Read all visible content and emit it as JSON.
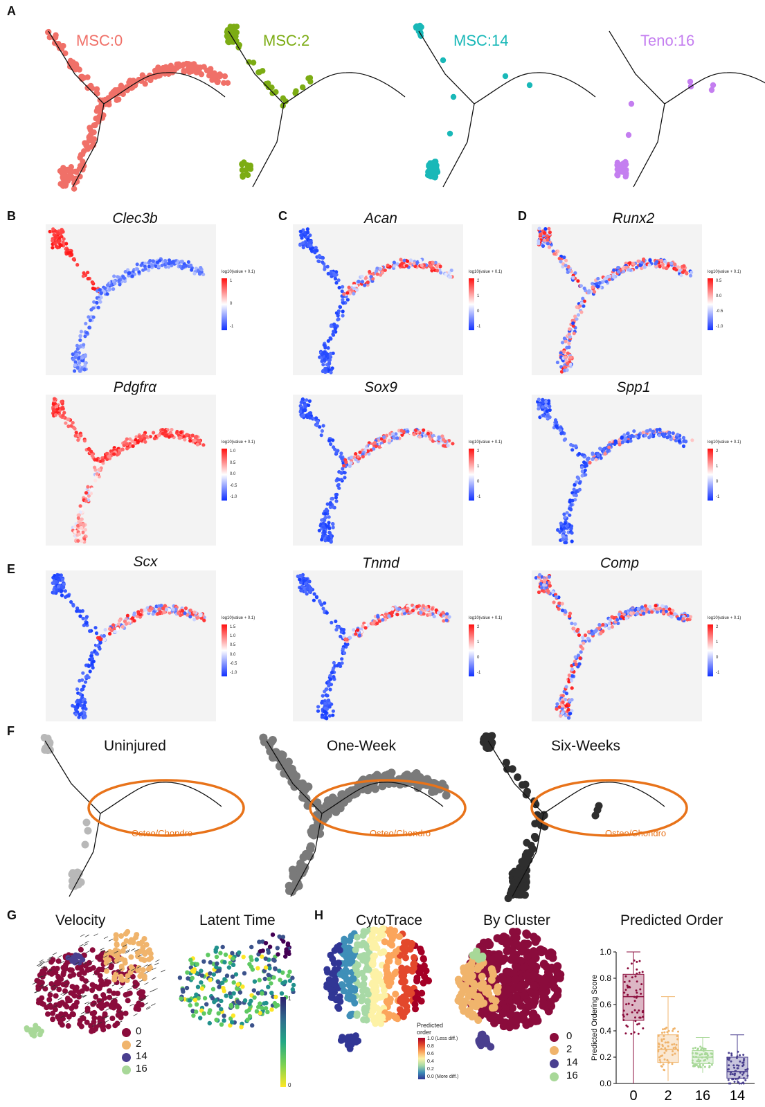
{
  "panels": {
    "a": "A",
    "b": "B",
    "c": "C",
    "d": "D",
    "e": "E",
    "f": "F",
    "g": "G",
    "h": "H"
  },
  "clusters": [
    {
      "name": "MSC:0",
      "color": "#f07068"
    },
    {
      "name": "MSC:2",
      "color": "#7cac14"
    },
    {
      "name": "MSC:14",
      "color": "#19b8b8"
    },
    {
      "name": "Teno:16",
      "color": "#c47ef0"
    }
  ],
  "genes": {
    "clec3b": "Clec3b",
    "acan": "Acan",
    "runx2": "Runx2",
    "pdgfra": "Pdgfrα",
    "sox9": "Sox9",
    "spp1": "Spp1",
    "scx": "Scx",
    "tnmd": "Tnmd",
    "comp": "Comp"
  },
  "colorbar": {
    "label": "log10(value + 0.1)",
    "clec3b": [
      "1",
      "0",
      "-1"
    ],
    "acan": [
      "2",
      "1",
      "0",
      "-1"
    ],
    "runx2": [
      "0.5",
      "0.0",
      "-0.5",
      "-1.0"
    ],
    "pdgfra": [
      "1.0",
      "0.5",
      "0.0",
      "-0.5",
      "-1.0"
    ],
    "sox9": [
      "2",
      "1",
      "0",
      "-1"
    ],
    "spp1": [
      "2",
      "1",
      "0",
      "-1"
    ],
    "scx": [
      "1.5",
      "1.0",
      "0.5",
      "0.0",
      "-0.5",
      "-1.0"
    ],
    "tnmd": [
      "2",
      "1",
      "0",
      "-1"
    ],
    "comp": [
      "2",
      "1",
      "0",
      "-1"
    ]
  },
  "timepoints": [
    {
      "name": "Uninjured",
      "color": "#b8b8b8"
    },
    {
      "name": "One-Week",
      "color": "#7a7a7a"
    },
    {
      "name": "Six-Weeks",
      "color": "#2e2e2e"
    }
  ],
  "osteo_label": "Osteo/Chondro",
  "osteo_color": "#e8731a",
  "g_titles": {
    "velocity": "Velocity",
    "latent": "Latent Time"
  },
  "h_titles": {
    "cytotrace": "CytoTrace",
    "bycluster": "By Cluster",
    "predicted": "Predicted Order"
  },
  "latent_ticks": {
    "top": "1",
    "bottom": "0"
  },
  "cyto_legend": {
    "title_line1": "Predicted",
    "title_line2": "order",
    "ticks": [
      "1.0 (Less diff.)",
      "0.8",
      "0.6",
      "0.4",
      "0.2",
      "0.0 (More diff.)"
    ]
  },
  "cluster_legend": [
    {
      "label": "0",
      "color": "#8b0c3c"
    },
    {
      "label": "2",
      "color": "#f0b46c"
    },
    {
      "label": "14",
      "color": "#4a3f8f"
    },
    {
      "label": "16",
      "color": "#a8d898"
    }
  ],
  "chart_data": {
    "type": "box",
    "title": "Predicted Order",
    "ylabel": "Predicted Ordering Score",
    "categories": [
      "0",
      "2",
      "16",
      "14"
    ],
    "ylim": [
      0,
      1.0
    ],
    "yticks": [
      "0.0",
      "0.2",
      "0.4",
      "0.6",
      "0.8",
      "1.0"
    ],
    "boxes": [
      {
        "category": "0",
        "min": 0.0,
        "q1": 0.48,
        "median": 0.66,
        "q3": 0.83,
        "max": 1.0,
        "color": "#8b0c3c"
      },
      {
        "category": "2",
        "min": 0.02,
        "q1": 0.16,
        "median": 0.26,
        "q3": 0.37,
        "max": 0.66,
        "color": "#f0b46c"
      },
      {
        "category": "16",
        "min": 0.08,
        "q1": 0.15,
        "median": 0.2,
        "q3": 0.25,
        "max": 0.35,
        "color": "#a8d898"
      },
      {
        "category": "14",
        "min": 0.0,
        "q1": 0.04,
        "median": 0.09,
        "q3": 0.2,
        "max": 0.37,
        "color": "#4a3f8f"
      }
    ]
  }
}
